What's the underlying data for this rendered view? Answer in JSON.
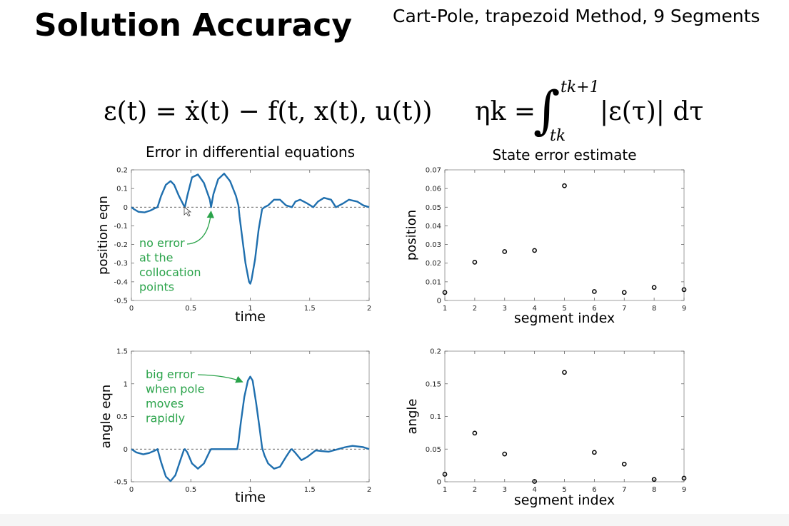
{
  "title": "Solution Accuracy",
  "subtitle": "Cart-Pole, trapezoid Method, 9 Segments",
  "equations": {
    "eq1": "ε(t) = ẋ(t) − f(t, x(t), u(t))",
    "eq2_lhs": "ηk =",
    "eq2_upper": "tk+1",
    "eq2_lower": "tk",
    "eq2_rhs": "|ε(τ)| dτ"
  },
  "colors": {
    "line": "#1f6fae",
    "annotation": "#2aa34a",
    "axis": "#000000"
  },
  "chart_data": [
    {
      "id": "pos-eqn",
      "type": "line",
      "title": "Error in differential equations",
      "xlabel": "time",
      "ylabel": "position eqn",
      "xlim": [
        0,
        2
      ],
      "ylim": [
        -0.5,
        0.2
      ],
      "xticks": [
        0,
        0.5,
        1,
        1.5,
        2
      ],
      "xtick_labels": [
        "0",
        "0.5",
        "1",
        "1.5",
        "2"
      ],
      "yticks": [
        -0.5,
        -0.4,
        -0.3,
        -0.2,
        -0.1,
        0,
        0.1,
        0.2
      ],
      "ytick_labels": [
        "-0.5",
        "-0.4",
        "-0.3",
        "-0.2",
        "-0.1",
        "0",
        "0.1",
        "0.2"
      ],
      "grid": false,
      "zero_line": true,
      "x": [
        0,
        0.02,
        0.06,
        0.11,
        0.16,
        0.2,
        0.22,
        0.25,
        0.29,
        0.33,
        0.36,
        0.4,
        0.44,
        0.45,
        0.47,
        0.51,
        0.56,
        0.61,
        0.66,
        0.67,
        0.69,
        0.73,
        0.78,
        0.83,
        0.88,
        0.9,
        0.91,
        0.93,
        0.96,
        0.99,
        1.0,
        1.01,
        1.04,
        1.07,
        1.1,
        1.12,
        1.15,
        1.2,
        1.25,
        1.3,
        1.35,
        1.38,
        1.42,
        1.48,
        1.53,
        1.57,
        1.62,
        1.68,
        1.72,
        1.78,
        1.83,
        1.9,
        1.95,
        2.0
      ],
      "y": [
        0,
        -0.01,
        -0.025,
        -0.028,
        -0.018,
        -0.005,
        0,
        0.06,
        0.12,
        0.14,
        0.12,
        0.06,
        0.01,
        0,
        0.06,
        0.16,
        0.175,
        0.13,
        0.04,
        0,
        0.07,
        0.15,
        0.18,
        0.14,
        0.06,
        0.01,
        -0.05,
        -0.15,
        -0.3,
        -0.4,
        -0.41,
        -0.39,
        -0.28,
        -0.12,
        -0.01,
        0,
        0.01,
        0.04,
        0.04,
        0.01,
        0,
        0.03,
        0.04,
        0.02,
        0,
        0.03,
        0.05,
        0.04,
        0,
        0.02,
        0.04,
        0.03,
        0.01,
        0
      ],
      "annotation": {
        "lines": [
          "no error",
          "at the",
          "collocation",
          "points"
        ],
        "arrow_to": [
          0.67,
          0
        ]
      }
    },
    {
      "id": "pos-err",
      "type": "scatter",
      "title": "State error estimate",
      "xlabel": "segment index",
      "ylabel": "position",
      "xlim": [
        1,
        9
      ],
      "ylim": [
        0,
        0.07
      ],
      "xticks": [
        1,
        2,
        3,
        4,
        5,
        6,
        7,
        8,
        9
      ],
      "xtick_labels": [
        "1",
        "2",
        "3",
        "4",
        "5",
        "6",
        "7",
        "8",
        "9"
      ],
      "yticks": [
        0,
        0.01,
        0.02,
        0.03,
        0.04,
        0.05,
        0.06,
        0.07
      ],
      "ytick_labels": [
        "0",
        "0.01",
        "0.02",
        "0.03",
        "0.04",
        "0.05",
        "0.06",
        "0.07"
      ],
      "grid": false,
      "x": [
        1,
        2,
        3,
        4,
        5,
        6,
        7,
        8,
        9
      ],
      "y": [
        0.0043,
        0.0205,
        0.0262,
        0.0268,
        0.0615,
        0.0048,
        0.0043,
        0.007,
        0.0058
      ]
    },
    {
      "id": "ang-eqn",
      "type": "line",
      "title": "",
      "xlabel": "time",
      "ylabel": "angle eqn",
      "xlim": [
        0,
        2
      ],
      "ylim": [
        -0.5,
        1.5
      ],
      "xticks": [
        0,
        0.5,
        1,
        1.5,
        2
      ],
      "xtick_labels": [
        "0",
        "0.5",
        "1",
        "1.5",
        "2"
      ],
      "yticks": [
        -0.5,
        0,
        0.5,
        1,
        1.5
      ],
      "ytick_labels": [
        "-0.5",
        "0",
        "0.5",
        "1",
        "1.5"
      ],
      "grid": false,
      "zero_line": true,
      "x": [
        0,
        0.04,
        0.1,
        0.15,
        0.2,
        0.22,
        0.25,
        0.29,
        0.33,
        0.37,
        0.41,
        0.44,
        0.45,
        0.47,
        0.51,
        0.56,
        0.61,
        0.66,
        0.67,
        0.7,
        0.8,
        0.89,
        0.9,
        0.92,
        0.95,
        0.98,
        1.0,
        1.02,
        1.05,
        1.08,
        1.1,
        1.12,
        1.15,
        1.2,
        1.25,
        1.3,
        1.34,
        1.35,
        1.38,
        1.43,
        1.48,
        1.55,
        1.6,
        1.66,
        1.72,
        1.8,
        1.86,
        1.95,
        2.0
      ],
      "y": [
        0,
        -0.05,
        -0.08,
        -0.06,
        -0.02,
        0,
        -0.2,
        -0.42,
        -0.49,
        -0.4,
        -0.18,
        -0.02,
        0,
        -0.05,
        -0.22,
        -0.3,
        -0.22,
        -0.03,
        0,
        0,
        0,
        0,
        0.1,
        0.4,
        0.8,
        1.05,
        1.11,
        1.05,
        0.7,
        0.3,
        0.02,
        -0.1,
        -0.22,
        -0.3,
        -0.27,
        -0.12,
        -0.01,
        0,
        -0.06,
        -0.17,
        -0.12,
        -0.02,
        -0.03,
        -0.04,
        -0.01,
        0.03,
        0.05,
        0.03,
        0
      ],
      "annotation": {
        "lines": [
          "big error",
          "when pole",
          "moves",
          "rapidly"
        ],
        "arrow_to": [
          0.97,
          1.05
        ]
      }
    },
    {
      "id": "ang-err",
      "type": "scatter",
      "title": "",
      "xlabel": "segment index",
      "ylabel": "angle",
      "xlim": [
        1,
        9
      ],
      "ylim": [
        0,
        0.2
      ],
      "xticks": [
        1,
        2,
        3,
        4,
        5,
        6,
        7,
        8,
        9
      ],
      "xtick_labels": [
        "1",
        "2",
        "3",
        "4",
        "5",
        "6",
        "7",
        "8",
        "9"
      ],
      "yticks": [
        0,
        0.05,
        0.1,
        0.15,
        0.2
      ],
      "ytick_labels": [
        "0",
        "0.05",
        "0.1",
        "0.15",
        "0.2"
      ],
      "grid": false,
      "x": [
        1,
        2,
        3,
        4,
        5,
        6,
        7,
        8,
        9
      ],
      "y": [
        0.0115,
        0.0745,
        0.0425,
        0.0005,
        0.1675,
        0.045,
        0.027,
        0.0035,
        0.0055
      ]
    }
  ]
}
